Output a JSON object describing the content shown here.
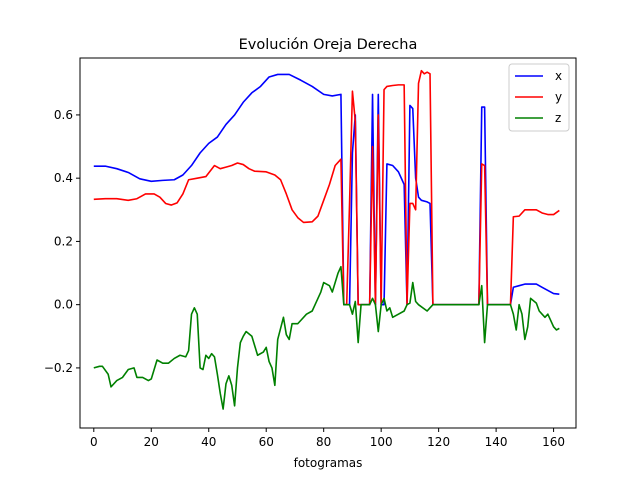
{
  "chart_data": {
    "type": "line",
    "title": "Evolución Oreja Derecha",
    "xlabel": "fotogramas",
    "ylabel": "",
    "xlim": [
      -4.8,
      167.8
    ],
    "ylim": [
      -0.39,
      0.78
    ],
    "xticks": [
      0,
      20,
      40,
      60,
      80,
      100,
      120,
      140,
      160
    ],
    "yticks": [
      -0.2,
      0.0,
      0.2,
      0.4,
      0.6
    ],
    "ytick_labels": [
      "−0.2",
      "0.0",
      "0.2",
      "0.4",
      "0.6"
    ],
    "grid": false,
    "legend_position": "top-right",
    "series": [
      {
        "name": "x",
        "color": "#0000ff",
        "points": [
          [
            0,
            0.438
          ],
          [
            4,
            0.438
          ],
          [
            8,
            0.43
          ],
          [
            12,
            0.418
          ],
          [
            16,
            0.398
          ],
          [
            20,
            0.39
          ],
          [
            24,
            0.393
          ],
          [
            28,
            0.395
          ],
          [
            31,
            0.41
          ],
          [
            34,
            0.44
          ],
          [
            37,
            0.48
          ],
          [
            40,
            0.51
          ],
          [
            43,
            0.53
          ],
          [
            46,
            0.57
          ],
          [
            49,
            0.6
          ],
          [
            52,
            0.64
          ],
          [
            55,
            0.67
          ],
          [
            58,
            0.69
          ],
          [
            61,
            0.72
          ],
          [
            64,
            0.728
          ],
          [
            68,
            0.728
          ],
          [
            72,
            0.71
          ],
          [
            76,
            0.69
          ],
          [
            80,
            0.665
          ],
          [
            83,
            0.66
          ],
          [
            86,
            0.665
          ],
          [
            87,
            0.0
          ],
          [
            89,
            0.0
          ],
          [
            90,
            0.48
          ],
          [
            91,
            0.6
          ],
          [
            92,
            0.0
          ],
          [
            96,
            0.0
          ],
          [
            97,
            0.665
          ],
          [
            98,
            0.0
          ],
          [
            99,
            0.665
          ],
          [
            100,
            0.0
          ],
          [
            101,
            0.0
          ],
          [
            102,
            0.445
          ],
          [
            104,
            0.44
          ],
          [
            106,
            0.42
          ],
          [
            108,
            0.38
          ],
          [
            109,
            0.0
          ],
          [
            110,
            0.63
          ],
          [
            111,
            0.62
          ],
          [
            112,
            0.4
          ],
          [
            113,
            0.34
          ],
          [
            114,
            0.33
          ],
          [
            116,
            0.325
          ],
          [
            117,
            0.32
          ],
          [
            118,
            0.0
          ],
          [
            134,
            0.0
          ],
          [
            135,
            0.625
          ],
          [
            136,
            0.625
          ],
          [
            137,
            0.0
          ],
          [
            145,
            0.0
          ],
          [
            146,
            0.055
          ],
          [
            148,
            0.06
          ],
          [
            150,
            0.065
          ],
          [
            154,
            0.065
          ],
          [
            156,
            0.055
          ],
          [
            158,
            0.045
          ],
          [
            160,
            0.035
          ],
          [
            162,
            0.033
          ]
        ]
      },
      {
        "name": "y",
        "color": "#ff0000",
        "points": [
          [
            0,
            0.333
          ],
          [
            4,
            0.335
          ],
          [
            8,
            0.335
          ],
          [
            12,
            0.33
          ],
          [
            15,
            0.335
          ],
          [
            18,
            0.35
          ],
          [
            21,
            0.35
          ],
          [
            23,
            0.34
          ],
          [
            25,
            0.32
          ],
          [
            27,
            0.315
          ],
          [
            29,
            0.322
          ],
          [
            31,
            0.35
          ],
          [
            33,
            0.395
          ],
          [
            36,
            0.4
          ],
          [
            39,
            0.405
          ],
          [
            42,
            0.44
          ],
          [
            44,
            0.43
          ],
          [
            46,
            0.435
          ],
          [
            48,
            0.44
          ],
          [
            50,
            0.448
          ],
          [
            52,
            0.443
          ],
          [
            54,
            0.43
          ],
          [
            56,
            0.422
          ],
          [
            60,
            0.42
          ],
          [
            63,
            0.41
          ],
          [
            65,
            0.395
          ],
          [
            67,
            0.35
          ],
          [
            69,
            0.3
          ],
          [
            71,
            0.275
          ],
          [
            73,
            0.26
          ],
          [
            76,
            0.262
          ],
          [
            78,
            0.28
          ],
          [
            80,
            0.33
          ],
          [
            82,
            0.38
          ],
          [
            84,
            0.44
          ],
          [
            86,
            0.46
          ],
          [
            87,
            0.0
          ],
          [
            88,
            0.0
          ],
          [
            89,
            0.32
          ],
          [
            90,
            0.675
          ],
          [
            91,
            0.58
          ],
          [
            92,
            0.0
          ],
          [
            93,
            0.0
          ],
          [
            94,
            0.0
          ],
          [
            96,
            0.0
          ],
          [
            97,
            0.5
          ],
          [
            98,
            0.0
          ],
          [
            99,
            0.6
          ],
          [
            100,
            0.0
          ],
          [
            101,
            0.68
          ],
          [
            102,
            0.69
          ],
          [
            104,
            0.693
          ],
          [
            106,
            0.695
          ],
          [
            108,
            0.695
          ],
          [
            109,
            0.0
          ],
          [
            110,
            0.32
          ],
          [
            111,
            0.32
          ],
          [
            112,
            0.3
          ],
          [
            113,
            0.7
          ],
          [
            114,
            0.74
          ],
          [
            115,
            0.73
          ],
          [
            116,
            0.735
          ],
          [
            117,
            0.73
          ],
          [
            118,
            0.0
          ],
          [
            134,
            0.0
          ],
          [
            135,
            0.445
          ],
          [
            136,
            0.44
          ],
          [
            137,
            0.0
          ],
          [
            145,
            0.0
          ],
          [
            146,
            0.278
          ],
          [
            148,
            0.28
          ],
          [
            150,
            0.3
          ],
          [
            154,
            0.3
          ],
          [
            156,
            0.29
          ],
          [
            158,
            0.285
          ],
          [
            160,
            0.285
          ],
          [
            162,
            0.298
          ]
        ]
      },
      {
        "name": "z",
        "color": "#008000",
        "points": [
          [
            0,
            -0.2
          ],
          [
            2,
            -0.195
          ],
          [
            3,
            -0.195
          ],
          [
            5,
            -0.22
          ],
          [
            6,
            -0.26
          ],
          [
            8,
            -0.24
          ],
          [
            10,
            -0.23
          ],
          [
            12,
            -0.205
          ],
          [
            14,
            -0.2
          ],
          [
            15,
            -0.23
          ],
          [
            17,
            -0.23
          ],
          [
            19,
            -0.24
          ],
          [
            20,
            -0.235
          ],
          [
            22,
            -0.175
          ],
          [
            24,
            -0.185
          ],
          [
            26,
            -0.185
          ],
          [
            28,
            -0.17
          ],
          [
            30,
            -0.16
          ],
          [
            32,
            -0.165
          ],
          [
            33,
            -0.145
          ],
          [
            34,
            -0.03
          ],
          [
            35,
            -0.01
          ],
          [
            36,
            -0.03
          ],
          [
            37,
            -0.2
          ],
          [
            38,
            -0.205
          ],
          [
            39,
            -0.16
          ],
          [
            40,
            -0.17
          ],
          [
            41,
            -0.155
          ],
          [
            42,
            -0.165
          ],
          [
            43,
            -0.22
          ],
          [
            44,
            -0.28
          ],
          [
            45,
            -0.33
          ],
          [
            46,
            -0.25
          ],
          [
            47,
            -0.225
          ],
          [
            48,
            -0.255
          ],
          [
            49,
            -0.32
          ],
          [
            50,
            -0.2
          ],
          [
            51,
            -0.12
          ],
          [
            52,
            -0.1
          ],
          [
            53,
            -0.085
          ],
          [
            55,
            -0.1
          ],
          [
            57,
            -0.16
          ],
          [
            59,
            -0.15
          ],
          [
            60,
            -0.135
          ],
          [
            61,
            -0.18
          ],
          [
            62,
            -0.2
          ],
          [
            63,
            -0.255
          ],
          [
            64,
            -0.11
          ],
          [
            66,
            -0.04
          ],
          [
            67,
            -0.095
          ],
          [
            68,
            -0.11
          ],
          [
            69,
            -0.06
          ],
          [
            71,
            -0.06
          ],
          [
            72,
            -0.05
          ],
          [
            74,
            -0.03
          ],
          [
            76,
            -0.02
          ],
          [
            77,
            0.0
          ],
          [
            79,
            0.04
          ],
          [
            80,
            0.07
          ],
          [
            82,
            0.06
          ],
          [
            83,
            0.04
          ],
          [
            84,
            0.07
          ],
          [
            85,
            0.1
          ],
          [
            86,
            0.12
          ],
          [
            87,
            0.0
          ],
          [
            88,
            0.0
          ],
          [
            89,
            0.0
          ],
          [
            90,
            -0.03
          ],
          [
            91,
            0.01
          ],
          [
            92,
            -0.12
          ],
          [
            93,
            0.0
          ],
          [
            94,
            0.0
          ],
          [
            96,
            0.0
          ],
          [
            97,
            0.02
          ],
          [
            98,
            0.0
          ],
          [
            99,
            -0.085
          ],
          [
            100,
            0.0
          ],
          [
            101,
            0.02
          ],
          [
            102,
            -0.02
          ],
          [
            103,
            -0.01
          ],
          [
            104,
            -0.04
          ],
          [
            106,
            -0.03
          ],
          [
            108,
            -0.02
          ],
          [
            109,
            0.0
          ],
          [
            110,
            0.005
          ],
          [
            111,
            0.07
          ],
          [
            112,
            0.01
          ],
          [
            113,
            0.0
          ],
          [
            116,
            -0.02
          ],
          [
            117,
            -0.01
          ],
          [
            118,
            0.0
          ],
          [
            134,
            0.0
          ],
          [
            135,
            0.06
          ],
          [
            136,
            -0.12
          ],
          [
            137,
            0.0
          ],
          [
            145,
            0.0
          ],
          [
            146,
            -0.03
          ],
          [
            147,
            -0.08
          ],
          [
            148,
            0.0
          ],
          [
            149,
            -0.03
          ],
          [
            150,
            -0.11
          ],
          [
            151,
            -0.07
          ],
          [
            152,
            0.02
          ],
          [
            154,
            0.005
          ],
          [
            155,
            -0.02
          ],
          [
            156,
            -0.03
          ],
          [
            157,
            -0.04
          ],
          [
            158,
            -0.03
          ],
          [
            159,
            -0.05
          ],
          [
            160,
            -0.07
          ],
          [
            161,
            -0.08
          ],
          [
            162,
            -0.075
          ]
        ]
      }
    ]
  }
}
